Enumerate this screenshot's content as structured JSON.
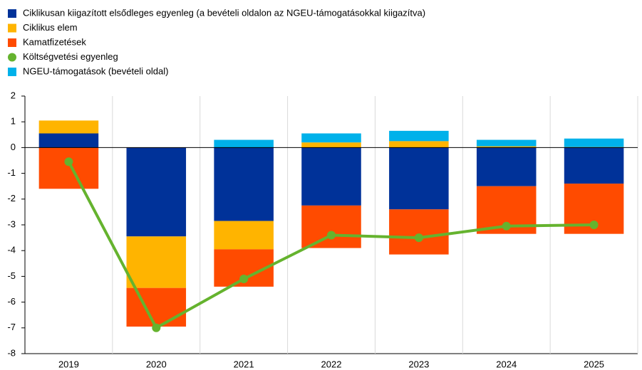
{
  "chart_data": {
    "type": "bar",
    "stacked": true,
    "categories": [
      "2019",
      "2020",
      "2021",
      "2022",
      "2023",
      "2024",
      "2025"
    ],
    "series": [
      {
        "name": "Ciklikusan kiigazított elsődleges egyenleg (a bevételi oldalon az NGEU-támogatásokkal kiigazítva)",
        "color": "#003299",
        "values": [
          0.55,
          -3.45,
          -2.85,
          -2.25,
          -2.4,
          -1.5,
          -1.4
        ]
      },
      {
        "name": "Ciklikus elem",
        "color": "#ffb400",
        "values": [
          0.5,
          -2.0,
          -1.1,
          0.2,
          0.25,
          0.05,
          0.02
        ]
      },
      {
        "name": "Kamatfizetések",
        "color": "#ff4b00",
        "values": [
          -1.6,
          -1.5,
          -1.45,
          -1.65,
          -1.75,
          -1.85,
          -1.95
        ]
      },
      {
        "name": "Költségvetési egyenleg",
        "color": "#65b32e",
        "type": "line",
        "values": [
          -0.55,
          -7.0,
          -5.1,
          -3.4,
          -3.5,
          -3.05,
          -3.0
        ]
      },
      {
        "name": "NGEU-támogatások (bevételi oldal)",
        "color": "#00b1ea",
        "values": [
          0,
          0,
          0.3,
          0.35,
          0.4,
          0.25,
          0.33
        ]
      }
    ],
    "ylim": [
      -8,
      2
    ],
    "yticks": [
      2,
      1,
      0,
      -1,
      -2,
      -3,
      -4,
      -5,
      -6,
      -7,
      -8
    ],
    "legend": "top-left"
  }
}
